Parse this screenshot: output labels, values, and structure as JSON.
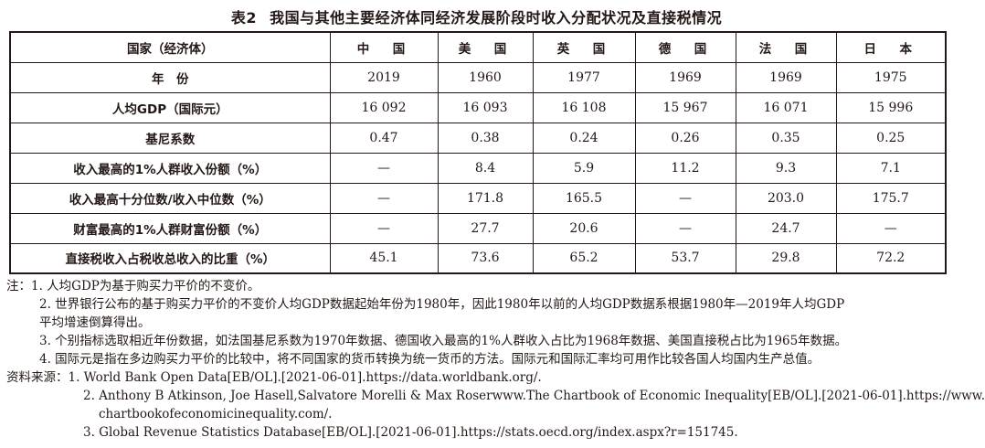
{
  "title": {
    "number": "表2",
    "text": "我国与其他主要经济体同经济发展阶段时收入分配状况及直接税情况"
  },
  "table": {
    "header": {
      "label": "国家（经济体）",
      "countries": [
        "中　国",
        "美　国",
        "英　国",
        "德　国",
        "法　国",
        "日　本"
      ]
    },
    "rows": [
      {
        "label": "年　份",
        "values": [
          "2019",
          "1960",
          "1977",
          "1969",
          "1969",
          "1975"
        ]
      },
      {
        "label": "人均GDP（国际元）",
        "values": [
          "16 092",
          "16 093",
          "16 108",
          "15 967",
          "16 071",
          "15 996"
        ]
      },
      {
        "label": "基尼系数",
        "values": [
          "0.47",
          "0.38",
          "0.24",
          "0.26",
          "0.35",
          "0.25"
        ]
      },
      {
        "label": "收入最高的1%人群收入份额（%）",
        "values": [
          "—",
          "8.4",
          "5.9",
          "11.2",
          "9.3",
          "7.1"
        ]
      },
      {
        "label": "收入最高十分位数/收入中位数（%）",
        "values": [
          "—",
          "171.8",
          "165.5",
          "—",
          "203.0",
          "175.7"
        ]
      },
      {
        "label": "财富最高的1%人群财富份额（%）",
        "values": [
          "—",
          "27.7",
          "20.6",
          "—",
          "24.7",
          "—"
        ]
      },
      {
        "label": "直接税收入占税收总收入的比重（%）",
        "values": [
          "45.1",
          "73.6",
          "65.2",
          "53.7",
          "29.8",
          "72.2"
        ]
      }
    ]
  },
  "notes": {
    "n1": "注：1. 人均GDP为基于购买力平价的不变价。",
    "n2a": "2. 世界银行公布的基于购买力平价的不变价人均GDP数据起始年份为1980年，因此1980年以前的人均GDP数据系根据1980年—2019年人均GDP",
    "n2b": "平均增速倒算得出。",
    "n3": "3. 个别指标选取相近年份数据，如法国基尼系数为1970年数据、德国收入最高的1%人群收入占比为1968年数据、美国直接税占比为1965年数据。",
    "n4": "4. 国际元是指在多边购买力平价的比较中，将不同国家的货币转换为统一货币的方法。国际元和国际汇率均可用作比较各国人均国内生产总值。"
  },
  "sources": {
    "s1": "资料来源：1. World Bank Open Data[EB/OL].[2021-06-01].https://data.worldbank.org/.",
    "s2a": "2.  Anthony B Atkinson, Joe Hasell,Salvatore Morelli & Max Roserwww.The Chartbook of Economic Inequality[EB/OL].[2021-06-01].https://www.",
    "s2b": "chartbookofeconomicinequality.com/.",
    "s3": "3.  Global Revenue Statistics Database[EB/OL].[2021-06-01].https://stats.oecd.org/index.aspx?r=151745."
  }
}
